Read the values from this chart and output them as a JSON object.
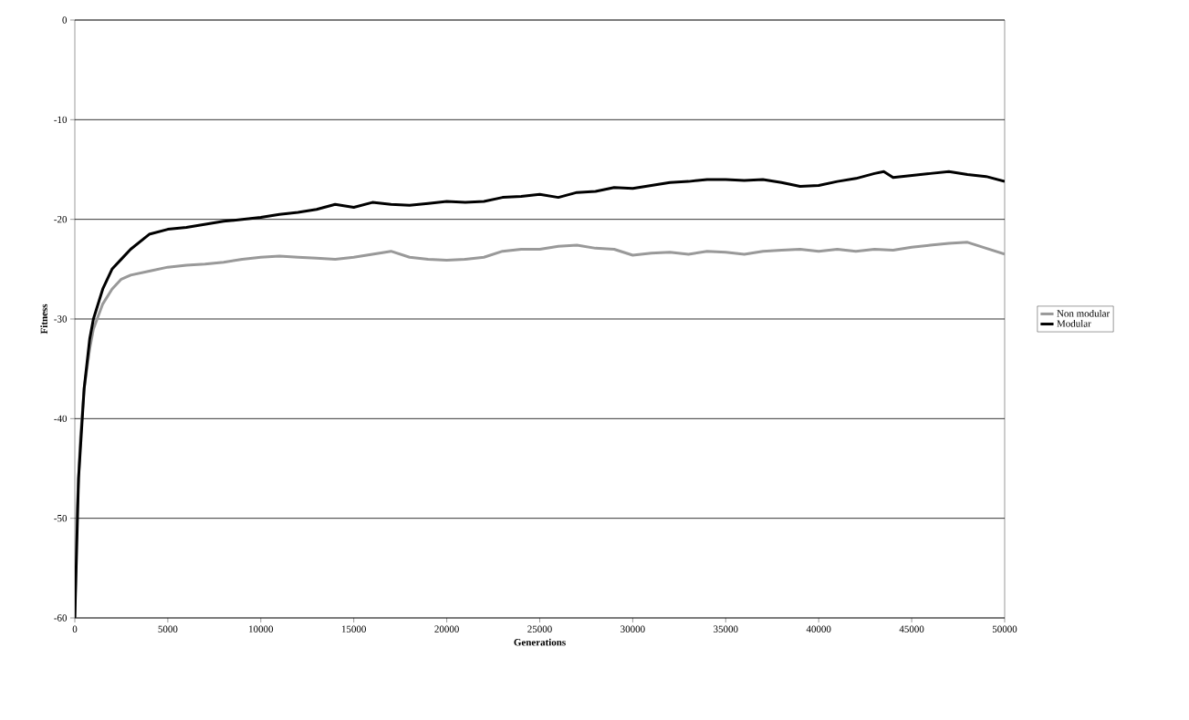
{
  "chart_data": {
    "type": "line",
    "xlabel": "Generations",
    "ylabel": "Fitness",
    "xlim": [
      0,
      50000
    ],
    "ylim": [
      -60,
      0
    ],
    "xticks": [
      0,
      5000,
      10000,
      15000,
      20000,
      25000,
      30000,
      35000,
      40000,
      45000,
      50000
    ],
    "yticks": [
      -60,
      -50,
      -40,
      -30,
      -20,
      -10,
      0
    ],
    "grid": "y",
    "legend": "right",
    "marker": "none",
    "line_style": "solid",
    "series": [
      {
        "name": "Non modular",
        "color": "#999999",
        "x": [
          0,
          100,
          300,
          500,
          800,
          1000,
          1500,
          2000,
          2500,
          3000,
          4000,
          5000,
          6000,
          7000,
          8000,
          9000,
          10000,
          11000,
          12000,
          13000,
          14000,
          15000,
          16000,
          17000,
          18000,
          19000,
          20000,
          21000,
          22000,
          23000,
          24000,
          25000,
          26000,
          27000,
          28000,
          29000,
          30000,
          31000,
          32000,
          33000,
          34000,
          35000,
          36000,
          37000,
          38000,
          39000,
          40000,
          41000,
          42000,
          43000,
          44000,
          45000,
          46000,
          47000,
          48000,
          49000,
          50000
        ],
        "values": [
          -60,
          -50,
          -42,
          -37,
          -33,
          -31,
          -28.5,
          -27,
          -26,
          -25.6,
          -25.2,
          -24.8,
          -24.6,
          -24.5,
          -24.3,
          -24,
          -23.8,
          -23.7,
          -23.8,
          -23.9,
          -24,
          -23.8,
          -23.5,
          -23.2,
          -23.8,
          -24,
          -24.1,
          -24,
          -23.8,
          -23.2,
          -23,
          -23,
          -22.7,
          -22.6,
          -22.9,
          -23,
          -23.6,
          -23.4,
          -23.3,
          -23.5,
          -23.2,
          -23.3,
          -23.5,
          -23.2,
          -23.1,
          -23,
          -23.2,
          -23,
          -23.2,
          -23,
          -23.1,
          -22.8,
          -22.6,
          -22.4,
          -22.3,
          -22.9,
          -23.5
        ]
      },
      {
        "name": "Modular",
        "color": "#000000",
        "x": [
          0,
          100,
          200,
          300,
          500,
          800,
          1000,
          1500,
          2000,
          2500,
          3000,
          4000,
          5000,
          6000,
          7000,
          8000,
          9000,
          10000,
          11000,
          12000,
          13000,
          14000,
          15000,
          16000,
          17000,
          18000,
          19000,
          20000,
          21000,
          22000,
          23000,
          24000,
          25000,
          26000,
          27000,
          28000,
          29000,
          30000,
          31000,
          32000,
          33000,
          34000,
          35000,
          36000,
          37000,
          38000,
          39000,
          40000,
          41000,
          42000,
          43000,
          43500,
          44000,
          45000,
          46000,
          47000,
          48000,
          49000,
          50000
        ],
        "values": [
          -60,
          -53,
          -46,
          -43,
          -37,
          -32,
          -30,
          -27,
          -25,
          -24,
          -23,
          -21.5,
          -21,
          -20.8,
          -20.5,
          -20.2,
          -20,
          -19.8,
          -19.5,
          -19.3,
          -19,
          -18.5,
          -18.8,
          -18.3,
          -18.5,
          -18.6,
          -18.4,
          -18.2,
          -18.3,
          -18.2,
          -17.8,
          -17.7,
          -17.5,
          -17.8,
          -17.3,
          -17.2,
          -16.8,
          -16.9,
          -16.6,
          -16.3,
          -16.2,
          -16,
          -16,
          -16.1,
          -16,
          -16.3,
          -16.7,
          -16.6,
          -16.2,
          -15.9,
          -15.4,
          -15.2,
          -15.8,
          -15.6,
          -15.4,
          -15.2,
          -15.5,
          -15.7,
          -16.2
        ]
      }
    ]
  }
}
